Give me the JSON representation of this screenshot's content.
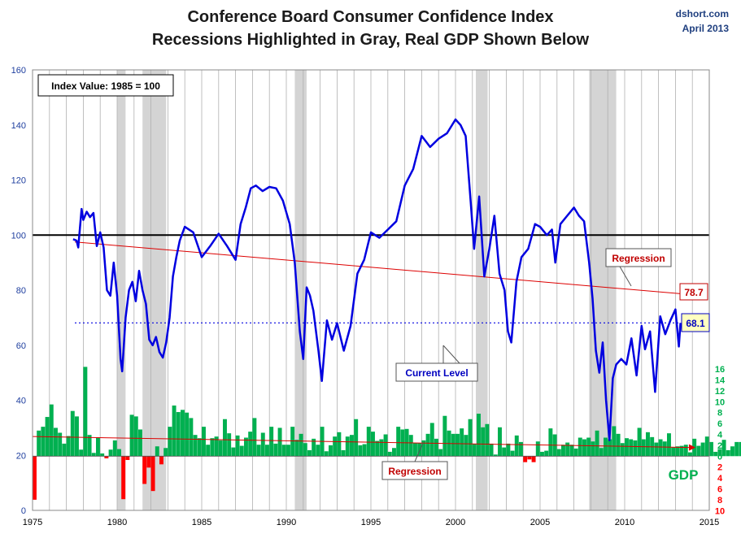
{
  "header": {
    "title_line1": "Conference Board Consumer Confidence Index",
    "title_line2": "Recessions Highlighted in Gray, Real GDP Shown Below",
    "source": "dshort.com",
    "date": "April 2013"
  },
  "chart_data": {
    "type": "line",
    "title": "Conference Board Consumer Confidence Index",
    "subtitle": "Recessions Highlighted in Gray, Real GDP Shown Below",
    "xlim": [
      1975,
      2015
    ],
    "x_ticks": [
      "1975",
      "1980",
      "1985",
      "1990",
      "1995",
      "2000",
      "2005",
      "2010",
      "2015"
    ],
    "ylim": [
      0,
      160
    ],
    "y_ticks": [
      "0",
      "20",
      "40",
      "60",
      "80",
      "100",
      "120",
      "140",
      "160"
    ],
    "gdp_ticks": [
      "16",
      "14",
      "12",
      "10",
      "8",
      "6",
      "4",
      "2",
      "0",
      "2",
      "4",
      "6",
      "8",
      "10"
    ],
    "grid": true,
    "recessions": [
      [
        1980.0,
        1980.5
      ],
      [
        1981.5,
        1982.9
      ],
      [
        1990.5,
        1991.2
      ],
      [
        2001.2,
        2001.9
      ],
      [
        2007.9,
        2009.5
      ]
    ],
    "annotations": {
      "index_value_box": "Index Value: 1985  = 100",
      "regression_label": "Regression",
      "regression_end_value": "78.7",
      "current_level_label": "Current Level",
      "current_value": "68.1",
      "gdp_regression_label": "Regression",
      "gdp_label": "GDP"
    },
    "reference_line_100": 100,
    "current_level": 68.1,
    "regression": {
      "x": [
        1977.5,
        2013.3
      ],
      "y": [
        97.5,
        78.7
      ]
    },
    "gdp_regression": {
      "x": [
        1975,
        2013.8
      ],
      "y": [
        3.6,
        1.6
      ]
    },
    "series": [
      {
        "values_x": [
          1977.4,
          1977.6,
          1977.7,
          1977.9,
          1978.0,
          1978.2,
          1978.4,
          1978.6,
          1978.8,
          1979.0,
          1979.2,
          1979.4,
          1979.6,
          1979.8,
          1980.0,
          1980.2,
          1980.3,
          1980.5,
          1980.7,
          1980.9,
          1981.1,
          1981.3,
          1981.5,
          1981.7,
          1981.9,
          1982.1,
          1982.3,
          1982.5,
          1982.7,
          1982.9,
          1983.1,
          1983.3,
          1983.5,
          1983.7,
          1984.0,
          1984.5,
          1985.0,
          1985.5,
          1986.0,
          1986.5,
          1987.0,
          1987.3,
          1987.6,
          1987.9,
          1988.2,
          1988.6,
          1989.0,
          1989.4,
          1989.8,
          1990.2,
          1990.5,
          1990.8,
          1991.0,
          1991.2,
          1991.4,
          1991.6,
          1991.9,
          1992.1,
          1992.4,
          1992.7,
          1993.0,
          1993.4,
          1993.8,
          1994.2,
          1994.6,
          1995.0,
          1995.5,
          1996.0,
          1996.5,
          1997.0,
          1997.5,
          1998.0,
          1998.5,
          1999.0,
          1999.5,
          2000.0,
          2000.3,
          2000.6,
          2000.9,
          2001.1,
          2001.4,
          2001.7,
          2002.0,
          2002.3,
          2002.6,
          2002.9,
          2003.1,
          2003.3,
          2003.6,
          2003.9,
          2004.3,
          2004.7,
          2005.0,
          2005.4,
          2005.7,
          2005.9,
          2006.2,
          2006.6,
          2007.0,
          2007.3,
          2007.6,
          2007.9,
          2008.1,
          2008.3,
          2008.5,
          2008.7,
          2008.9,
          2009.1,
          2009.3,
          2009.5,
          2009.8,
          2010.1,
          2010.4,
          2010.7,
          2011.0,
          2011.2,
          2011.5,
          2011.8,
          2012.1,
          2012.4,
          2012.7,
          2013.0,
          2013.2,
          2013.3
        ],
        "values": [
          98.5,
          98.0,
          95.5,
          109.5,
          105.5,
          108.5,
          106.5,
          108.0,
          96.0,
          101.0,
          95.5,
          80.0,
          78.0,
          90.0,
          78.0,
          55.0,
          50.5,
          70.0,
          80.0,
          83.0,
          76.0,
          87.0,
          80.0,
          75.0,
          62.0,
          60.0,
          63.0,
          57.5,
          55.5,
          61.0,
          70.0,
          85.0,
          92.0,
          98.0,
          103.0,
          101.0,
          92.0,
          96.0,
          100.5,
          96.0,
          91.0,
          104.0,
          110.0,
          117.0,
          118.0,
          116.0,
          117.5,
          117.0,
          112.5,
          104.0,
          90.0,
          65.0,
          55.0,
          81.0,
          78.0,
          72.5,
          58.0,
          47.0,
          69.0,
          62.0,
          68.0,
          58.0,
          67.0,
          86.0,
          91.0,
          101.0,
          99.0,
          102.0,
          105.0,
          118.0,
          124.0,
          136.0,
          132.0,
          135.0,
          137.0,
          142.0,
          140.0,
          136.0,
          112.0,
          95.0,
          114.0,
          85.0,
          95.0,
          107.0,
          86.0,
          80.0,
          65.0,
          61.0,
          83.0,
          92.0,
          95.0,
          104.0,
          103.0,
          100.0,
          102.0,
          90.0,
          104.0,
          107.0,
          110.0,
          107.0,
          105.0,
          90.0,
          77.0,
          58.0,
          50.0,
          61.0,
          40.0,
          25.5,
          48.0,
          53.0,
          55.0,
          53.0,
          62.5,
          49.0,
          67.0,
          58.5,
          65.0,
          43.0,
          70.5,
          64.0,
          69.0,
          73.0,
          59.5,
          68.1
        ]
      }
    ],
    "gdp_bars": [
      -8.0,
      4.7,
      5.4,
      7.2,
      9.5,
      5.2,
      4.3,
      2.3,
      3.7,
      8.3,
      7.3,
      1.2,
      16.4,
      3.9,
      0.6,
      3.4,
      0.5,
      -0.4,
      1.2,
      2.9,
      1.3,
      -7.9,
      -0.7,
      7.6,
      7.3,
      4.9,
      -5.1,
      -2.1,
      -6.4,
      1.8,
      -1.5,
      1.5,
      5.4,
      9.3,
      8.1,
      8.5,
      8.0,
      7.0,
      3.9,
      3.3,
      5.4,
      2.1,
      3.3,
      3.6,
      2.9,
      6.8,
      4.2,
      1.6,
      3.8,
      1.9,
      3.4,
      4.5,
      7.0,
      2.1,
      4.3,
      2.1,
      5.4,
      2.3,
      5.2,
      2.1,
      2.1,
      5.4,
      3.0,
      4.1,
      2.4,
      1.1,
      3.2,
      2.1,
      5.4,
      0.9,
      2.0,
      3.6,
      4.4,
      1.1,
      3.6,
      3.9,
      6.8,
      2.0,
      2.2,
      5.4,
      4.5,
      2.8,
      3.1,
      4.0,
      0.8,
      1.5,
      5.4,
      4.9,
      5.0,
      3.9,
      2.4,
      2.4,
      2.9,
      4.1,
      6.1,
      3.2,
      1.3,
      7.4,
      4.7,
      4.1,
      4.1,
      5.1,
      3.9,
      6.8,
      2.2,
      7.8,
      5.3,
      5.9,
      2.3,
      0.3,
      5.3,
      1.6,
      2.3,
      1.0,
      3.8,
      2.6,
      -1.1,
      -0.6,
      -1.1,
      2.7,
      0.8,
      1.0,
      5.1,
      4.0,
      1.3,
      2.1,
      2.5,
      2.1,
      1.4,
      3.4,
      3.1,
      3.4,
      2.7,
      4.7,
      1.5,
      3.4,
      3.1,
      5.5,
      4.1,
      2.4,
      3.3,
      3.1,
      2.9,
      5.2,
      3.1,
      4.4,
      3.5,
      2.5,
      3.1,
      2.7,
      4.2,
      1.6,
      1.8,
      1.9,
      2.1,
      0.7,
      3.2,
      1.9,
      2.5,
      3.6,
      2.6,
      0.8,
      1.3,
      3.0,
      1.1,
      1.8,
      2.6,
      2.6,
      1.6,
      0.9,
      2.2,
      1.5,
      2.0,
      1.7,
      1.3,
      3.9,
      1.7,
      2.4,
      3.7,
      2.8,
      0.9,
      2.9,
      2.1,
      1.1,
      2.3,
      0.9,
      3.1,
      2.8,
      1.9,
      3.1,
      0.1,
      2.4
    ],
    "gdp_bars_note_x_start": 1975.0,
    "colors": {
      "index_line": "#0000e0",
      "regression": "#dd0000",
      "current_level": "#0000e0",
      "recession": "#d4d4d4",
      "gdp_positive": "#00b050",
      "gdp_negative": "#ff0000",
      "left_axis": "#1f3f9f",
      "right_axis": "#00b050",
      "current_value_box": "#ffffc0"
    }
  }
}
